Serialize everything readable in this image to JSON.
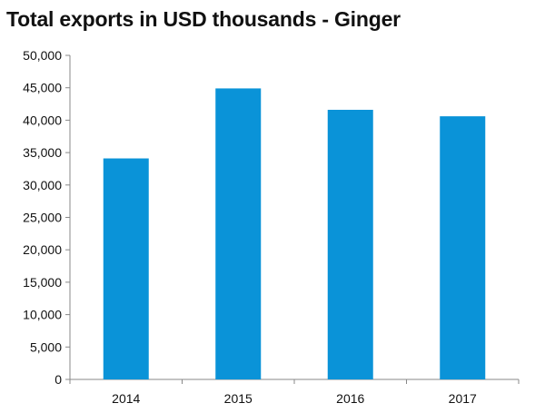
{
  "chart_data": {
    "type": "bar",
    "title": "Total exports in USD thousands - Ginger",
    "categories": [
      "2014",
      "2015",
      "2016",
      "2017"
    ],
    "values": [
      34100,
      44900,
      41600,
      40600
    ],
    "ylim": [
      0,
      50000
    ],
    "yticks": [
      0,
      5000,
      10000,
      15000,
      20000,
      25000,
      30000,
      35000,
      40000,
      45000,
      50000
    ],
    "ytick_labels": [
      "0",
      "5,000",
      "10,000",
      "15,000",
      "20,000",
      "25,000",
      "30,000",
      "35,000",
      "40,000",
      "45,000",
      "50,000"
    ],
    "xlabel": "",
    "ylabel": "",
    "grid": false,
    "legend": "none",
    "bar_color": "#0a93d8"
  }
}
